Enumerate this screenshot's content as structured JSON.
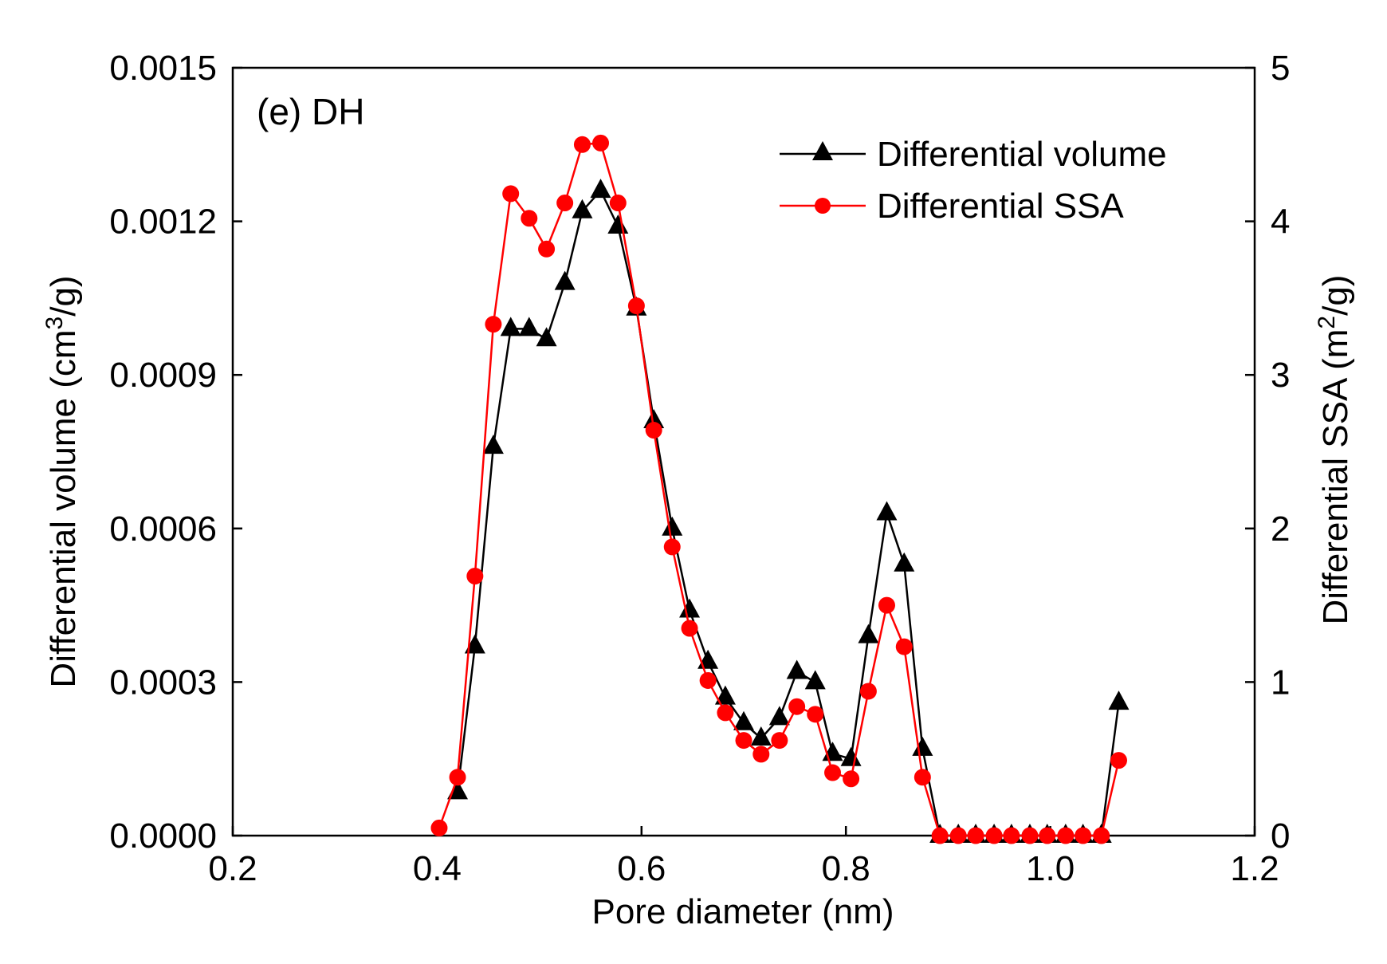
{
  "chart_data": {
    "type": "line",
    "panel_label": "(e) DH",
    "xlabel": "Pore diameter (nm)",
    "ylabel_left": {
      "pre": "Differential volume (cm",
      "sup": "3",
      "post": "/g)"
    },
    "ylabel_right": {
      "pre": "Differential SSA (m",
      "sup": "2",
      "post": "/g)"
    },
    "xlim": [
      0.2,
      1.2
    ],
    "ylim_left": [
      0,
      0.0015
    ],
    "ylim_right": [
      0,
      5
    ],
    "x_ticks": [
      "0.2",
      "0.4",
      "0.6",
      "0.8",
      "1.0",
      "1.2"
    ],
    "y_ticks_left": [
      "0.0000",
      "0.0003",
      "0.0006",
      "0.0009",
      "0.0012",
      "0.0015"
    ],
    "y_ticks_right": [
      "0",
      "1",
      "2",
      "3",
      "4",
      "5"
    ],
    "legend_position": "top-right",
    "series": [
      {
        "name": "Differential volume",
        "axis": "left",
        "color": "#000000",
        "marker": "triangle",
        "x": [
          0.42,
          0.437,
          0.455,
          0.472,
          0.49,
          0.507,
          0.525,
          0.542,
          0.56,
          0.577,
          0.595,
          0.612,
          0.63,
          0.647,
          0.665,
          0.682,
          0.7,
          0.717,
          0.735,
          0.752,
          0.77,
          0.787,
          0.805,
          0.822,
          0.84,
          0.857,
          0.875,
          0.892,
          0.91,
          0.927,
          0.945,
          0.962,
          0.98,
          0.997,
          1.015,
          1.032,
          1.05,
          1.067
        ],
        "values": [
          8.5e-05,
          0.00037,
          0.00076,
          0.00099,
          0.00099,
          0.00097,
          0.00108,
          0.00122,
          0.00126,
          0.00119,
          0.00103,
          0.00081,
          0.0006,
          0.00044,
          0.00034,
          0.00027,
          0.00022,
          0.00019,
          0.00023,
          0.00032,
          0.0003,
          0.00016,
          0.00015,
          0.00039,
          0.00063,
          0.00053,
          0.00017,
          0.0,
          0.0,
          0.0,
          0.0,
          0.0,
          0.0,
          0.0,
          0.0,
          0.0,
          0.0,
          0.00026
        ]
      },
      {
        "name": "Differential SSA",
        "axis": "right",
        "color": "#ff0000",
        "marker": "circle",
        "x": [
          0.402,
          0.42,
          0.437,
          0.455,
          0.472,
          0.49,
          0.507,
          0.525,
          0.542,
          0.56,
          0.577,
          0.595,
          0.612,
          0.63,
          0.647,
          0.665,
          0.682,
          0.7,
          0.717,
          0.735,
          0.752,
          0.77,
          0.787,
          0.805,
          0.822,
          0.84,
          0.857,
          0.875,
          0.892,
          0.91,
          0.927,
          0.945,
          0.962,
          0.98,
          0.997,
          1.015,
          1.032,
          1.05,
          1.067
        ],
        "values": [
          0.05,
          0.38,
          1.69,
          3.33,
          4.18,
          4.02,
          3.82,
          4.12,
          4.5,
          4.51,
          4.12,
          3.45,
          2.64,
          1.88,
          1.35,
          1.01,
          0.8,
          0.62,
          0.53,
          0.62,
          0.84,
          0.79,
          0.41,
          0.37,
          0.94,
          1.5,
          1.23,
          0.38,
          0.0,
          0.0,
          0.0,
          0.0,
          0.0,
          0.0,
          0.0,
          0.0,
          0.0,
          0.0,
          0.49
        ]
      }
    ]
  }
}
